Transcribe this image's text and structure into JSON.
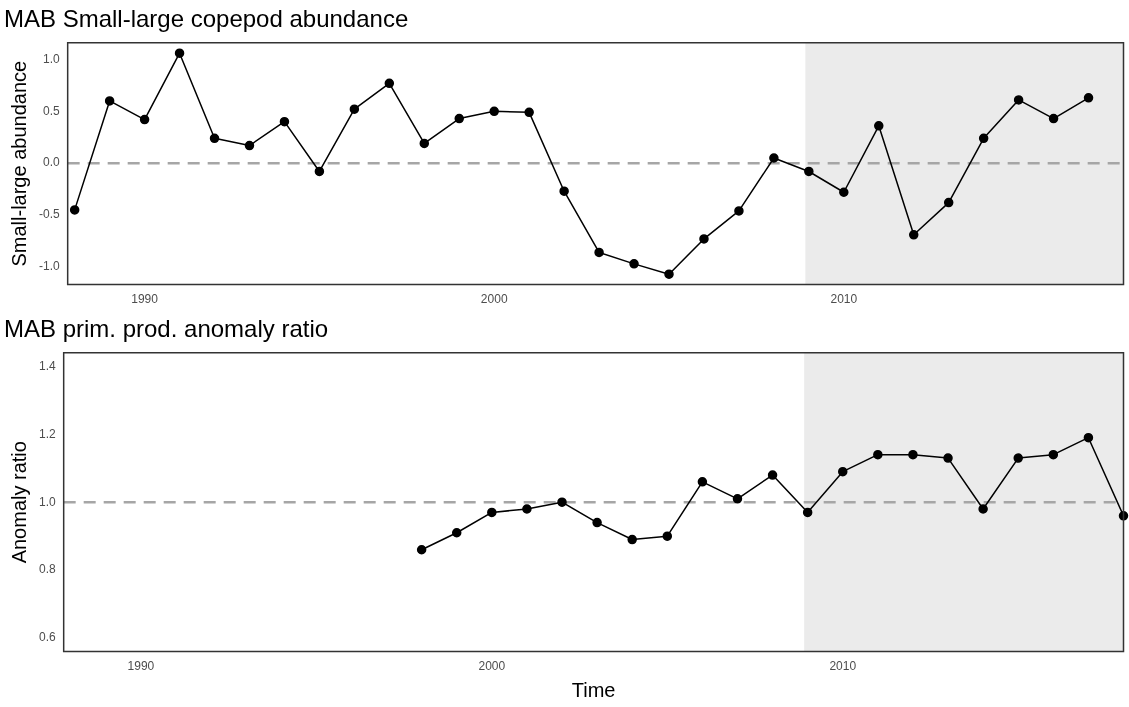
{
  "chart_data": [
    {
      "type": "line",
      "title": "MAB Small-large copepod abundance",
      "ylabel": "Small-large abundance",
      "x": [
        1988,
        1989,
        1990,
        1991,
        1992,
        1993,
        1994,
        1995,
        1996,
        1997,
        1998,
        1999,
        2000,
        2001,
        2002,
        2003,
        2004,
        2005,
        2006,
        2007,
        2008,
        2009,
        2010,
        2011,
        2012,
        2013,
        2014,
        2015,
        2016,
        2017
      ],
      "series": [
        {
          "color": "#000000",
          "values": [
            -0.45,
            0.6,
            0.42,
            1.06,
            0.24,
            0.17,
            0.4,
            -0.08,
            0.52,
            0.77,
            0.19,
            0.43,
            0.5,
            0.49,
            -0.27,
            -0.86,
            -0.97,
            -1.07,
            -0.73,
            -0.46,
            0.05,
            -0.08,
            -0.28,
            0.36,
            -0.69,
            -0.38,
            0.24,
            0.61,
            0.43,
            0.63
          ]
        }
      ],
      "xlim": [
        1987.8,
        2018
      ],
      "ylim": [
        -1.17,
        1.16
      ],
      "xticks": [
        1990,
        2000,
        2010
      ],
      "yticks": [
        {
          "value": -1,
          "label": "-1.0"
        },
        {
          "value": -0.5,
          "label": "-0.5"
        },
        {
          "value": 0,
          "label": "0.0"
        },
        {
          "value": 0.5,
          "label": "0.5"
        },
        {
          "value": 1,
          "label": "1.0"
        }
      ],
      "ref_lines": [
        {
          "axis": "y",
          "value": 0,
          "color": "#a6a6a6",
          "line_style": "dashed"
        }
      ],
      "bands": [
        {
          "axis": "x",
          "from": 2008.9,
          "to": 2018,
          "color": "#ebebeb"
        }
      ],
      "grid": false,
      "marker": "circle",
      "line_style": "solid"
    },
    {
      "type": "line",
      "title": "MAB prim. prod. anomaly ratio",
      "ylabel": "Anomaly ratio",
      "xlabel": "Time",
      "x": [
        1998,
        1999,
        2000,
        2001,
        2002,
        2003,
        2004,
        2005,
        2006,
        2007,
        2008,
        2009,
        2010,
        2011,
        2012,
        2013,
        2014,
        2015,
        2016,
        2017,
        2018
      ],
      "series": [
        {
          "color": "#000000",
          "values": [
            0.86,
            0.91,
            0.97,
            0.98,
            1.0,
            0.94,
            0.89,
            0.9,
            1.06,
            1.01,
            1.08,
            0.97,
            1.09,
            1.14,
            1.14,
            1.13,
            0.98,
            1.13,
            1.14,
            1.19,
            0.96
          ]
        }
      ],
      "xlim": [
        1987.8,
        2018
      ],
      "ylim": [
        0.56,
        1.44
      ],
      "xticks": [
        1990,
        2000,
        2010
      ],
      "yticks": [
        0.6,
        0.8,
        {
          "value": 1,
          "label": "1.0"
        },
        1.2,
        1.4
      ],
      "ref_lines": [
        {
          "axis": "y",
          "value": 1,
          "color": "#a6a6a6",
          "line_style": "dashed"
        }
      ],
      "bands": [
        {
          "axis": "x",
          "from": 2008.9,
          "to": 2018,
          "color": "#ebebeb"
        }
      ],
      "grid": false,
      "marker": "circle",
      "line_style": "solid"
    }
  ]
}
